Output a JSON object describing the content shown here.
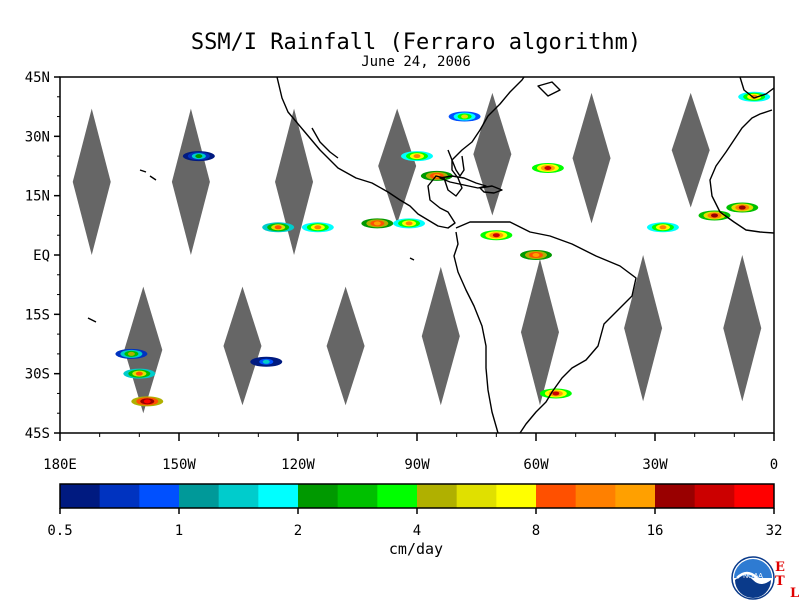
{
  "chart_data": {
    "type": "heatmap",
    "title": "SSM/I Rainfall (Ferraro algorithm)",
    "subtitle": "June 24, 2006",
    "xlim": [
      -180,
      0
    ],
    "ylim": [
      -45,
      45
    ],
    "x_ticks": [
      {
        "lon": -180,
        "label": "180E"
      },
      {
        "lon": -150,
        "label": "150W"
      },
      {
        "lon": -120,
        "label": "120W"
      },
      {
        "lon": -90,
        "label": "90W"
      },
      {
        "lon": -60,
        "label": "60W"
      },
      {
        "lon": -30,
        "label": "30W"
      },
      {
        "lon": 0,
        "label": "0"
      }
    ],
    "y_ticks": [
      {
        "lat": 45,
        "label": "45N"
      },
      {
        "lat": 30,
        "label": "30N"
      },
      {
        "lat": 15,
        "label": "15N"
      },
      {
        "lat": 0,
        "label": "EQ"
      },
      {
        "lat": -15,
        "label": "15S"
      },
      {
        "lat": -30,
        "label": "30S"
      },
      {
        "lat": -45,
        "label": "45S"
      }
    ],
    "colorbar": {
      "units": "cm/day",
      "scale": "log",
      "range": [
        0.5,
        32
      ],
      "tick_labels": [
        "0.5",
        "1",
        "2",
        "4",
        "8",
        "16",
        "32"
      ],
      "colors": [
        "#001a80",
        "#0033c0",
        "#0050ff",
        "#009999",
        "#00cccc",
        "#00ffff",
        "#009900",
        "#00c000",
        "#00ff00",
        "#b0b000",
        "#e0e000",
        "#ffff00",
        "#ff5000",
        "#ff8000",
        "#ffa000",
        "#990000",
        "#cc0000",
        "#ff0000"
      ]
    },
    "no_data_color": "#666666",
    "no_data_gaps": [
      {
        "lon": -172,
        "lat_top": 37,
        "lat_bottom": 0
      },
      {
        "lon": -147,
        "lat_top": 37,
        "lat_bottom": 0
      },
      {
        "lon": -121,
        "lat_top": 37,
        "lat_bottom": 0
      },
      {
        "lon": -95,
        "lat_top": 37,
        "lat_bottom": 8
      },
      {
        "lon": -71,
        "lat_top": 41,
        "lat_bottom": 10
      },
      {
        "lon": -46,
        "lat_top": 41,
        "lat_bottom": 8
      },
      {
        "lon": -21,
        "lat_top": 41,
        "lat_bottom": 12
      },
      {
        "lon": -159,
        "lat_top": -8,
        "lat_bottom": -40
      },
      {
        "lon": -134,
        "lat_top": -8,
        "lat_bottom": -38
      },
      {
        "lon": -108,
        "lat_top": -8,
        "lat_bottom": -38
      },
      {
        "lon": -84,
        "lat_top": -3,
        "lat_bottom": -38
      },
      {
        "lon": -59,
        "lat_top": -1,
        "lat_bottom": -38
      },
      {
        "lon": -33,
        "lat_top": 0,
        "lat_bottom": -37
      },
      {
        "lon": -8,
        "lat_top": 0,
        "lat_bottom": -37
      }
    ],
    "rain_regions": [
      {
        "lon": -160,
        "lat": -30,
        "level": 12
      },
      {
        "lon": -158,
        "lat": -37,
        "level": 17
      },
      {
        "lon": -162,
        "lat": -25,
        "level": 9
      },
      {
        "lon": -125,
        "lat": 7,
        "level": 12
      },
      {
        "lon": -115,
        "lat": 7,
        "level": 13
      },
      {
        "lon": -100,
        "lat": 8,
        "level": 14
      },
      {
        "lon": -92,
        "lat": 8,
        "level": 13
      },
      {
        "lon": -85,
        "lat": 20,
        "level": 14
      },
      {
        "lon": -90,
        "lat": 25,
        "level": 13
      },
      {
        "lon": -78,
        "lat": 35,
        "level": 10
      },
      {
        "lon": -70,
        "lat": 5,
        "level": 16
      },
      {
        "lon": -60,
        "lat": 0,
        "level": 14
      },
      {
        "lon": -57,
        "lat": 22,
        "level": 16
      },
      {
        "lon": -28,
        "lat": 7,
        "level": 13
      },
      {
        "lon": -15,
        "lat": 10,
        "level": 15
      },
      {
        "lon": -8,
        "lat": 12,
        "level": 15
      },
      {
        "lon": -55,
        "lat": -35,
        "level": 16
      },
      {
        "lon": -5,
        "lat": 40,
        "level": 13
      },
      {
        "lon": -128,
        "lat": -27,
        "level": 4
      },
      {
        "lon": -145,
        "lat": 25,
        "level": 6
      }
    ],
    "logo": {
      "label": "NOAA",
      "side_text": [
        "E",
        "T",
        "L"
      ]
    }
  }
}
